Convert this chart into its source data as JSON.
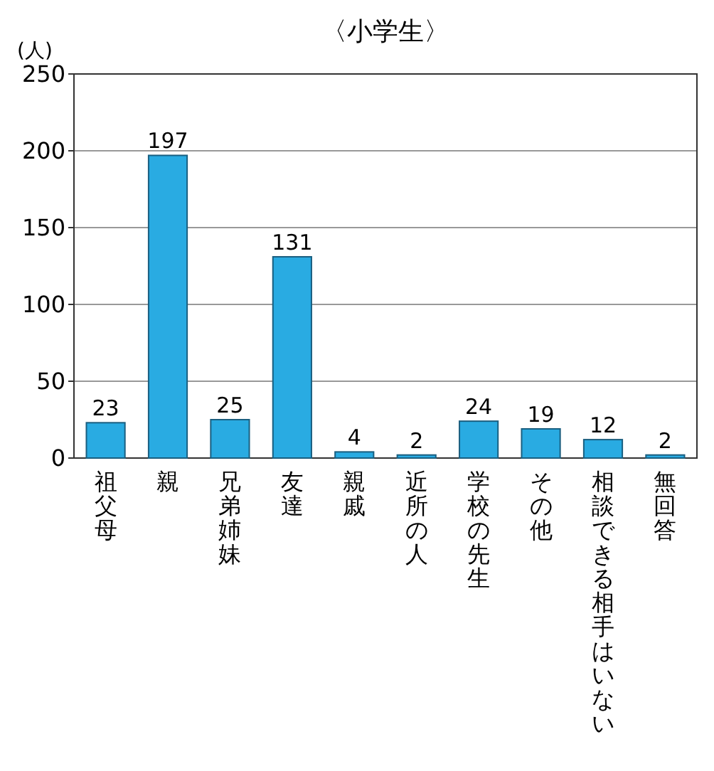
{
  "chart_data": {
    "type": "bar",
    "title": "〈小学生〉",
    "ylabel": "(人)",
    "categories": [
      "祖父母",
      "親",
      "兄弟姉妹",
      "友達",
      "親戚",
      "近所の人",
      "学校の先生",
      "その他",
      "相談できる相手はいない",
      "無回答"
    ],
    "values": [
      23,
      197,
      25,
      131,
      4,
      2,
      24,
      19,
      12,
      2
    ],
    "color": "#29abe2",
    "ylim": [
      0,
      250
    ],
    "yticks": [
      0,
      50,
      100,
      150,
      200,
      250
    ],
    "grid": "y",
    "data_labels": true
  }
}
